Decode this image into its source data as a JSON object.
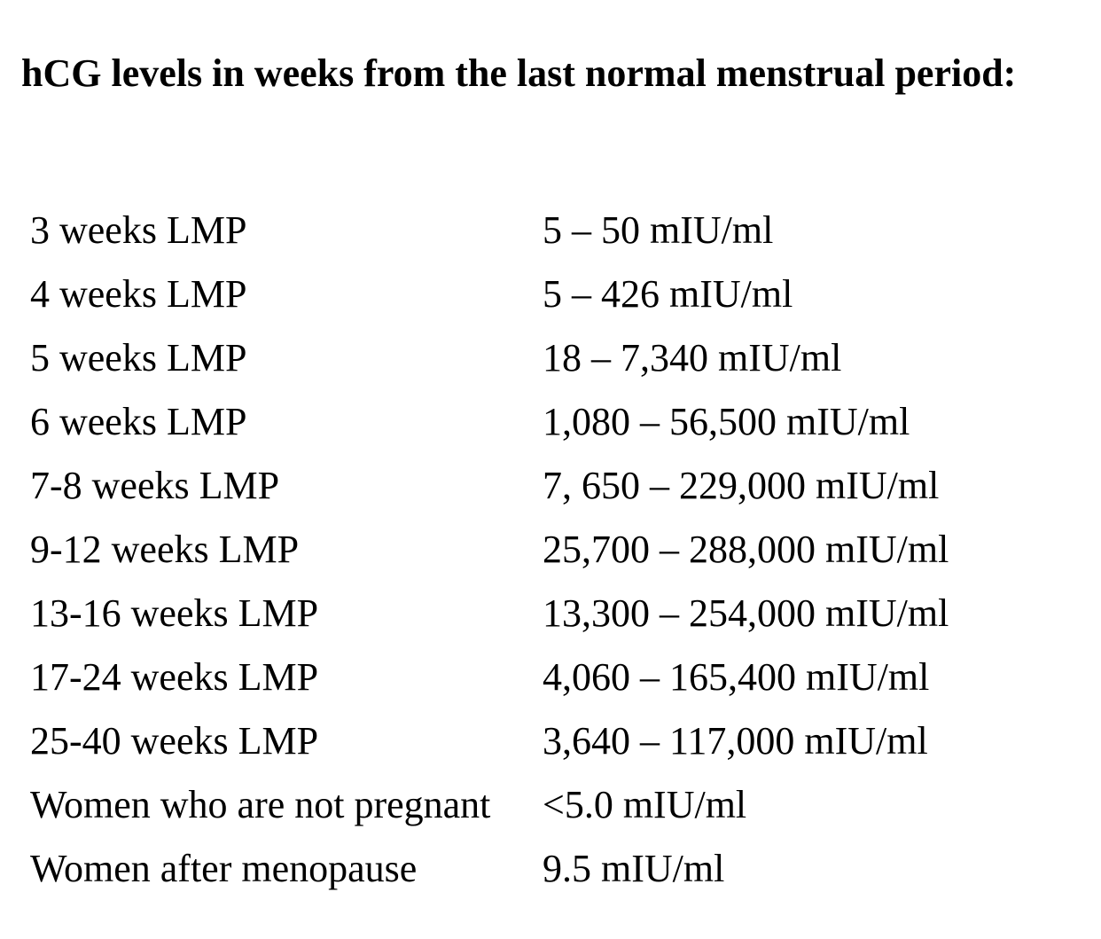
{
  "heading": {
    "text": "hCG levels in weeks from the last normal menstrual period:"
  },
  "rows": [
    {
      "label": "3 weeks LMP",
      "value": "5 – 50 mIU/ml"
    },
    {
      "label": "4 weeks LMP",
      "value": "5 – 426 mIU/ml"
    },
    {
      "label": "5 weeks LMP",
      "value": "18 – 7,340 mIU/ml"
    },
    {
      "label": "6 weeks LMP",
      "value": "1,080 – 56,500 mIU/ml"
    },
    {
      "label": "7-8 weeks LMP",
      "value": "7, 650 – 229,000 mIU/ml"
    },
    {
      "label": "9-12 weeks LMP",
      "value": "25,700 – 288,000 mIU/ml"
    },
    {
      "label": "13-16 weeks LMP",
      "value": "13,300 – 254,000 mIU/ml"
    },
    {
      "label": "17-24 weeks LMP",
      "value": "4,060 – 165,400 mIU/ml"
    },
    {
      "label": "25-40 weeks LMP",
      "value": "3,640 – 117,000 mIU/ml"
    },
    {
      "label": "Women who are not pregnant",
      "value": "<5.0 mIU/ml"
    },
    {
      "label": "Women after menopause",
      "value": "9.5 mIU/ml"
    }
  ]
}
